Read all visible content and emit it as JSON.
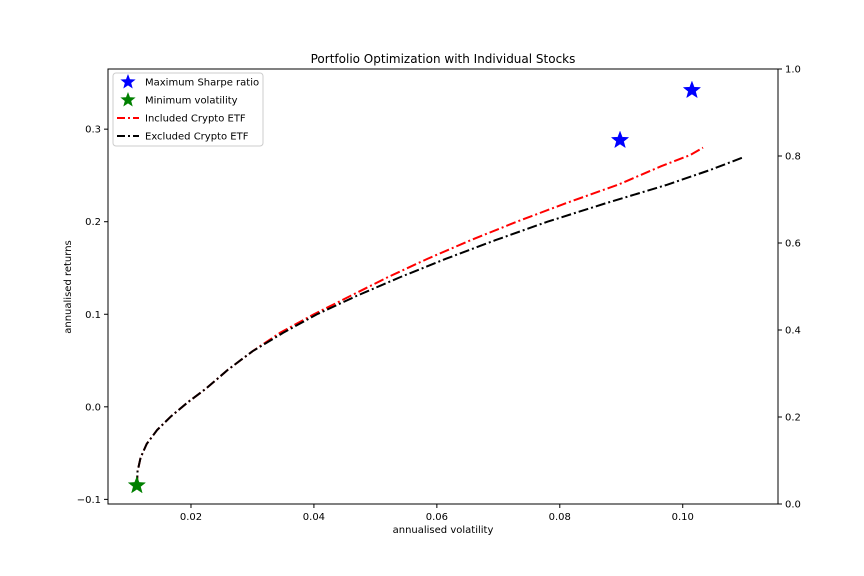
{
  "chart_data": {
    "type": "line",
    "title": "Portfolio Optimization with Individual Stocks",
    "xlabel": "annualised volatility",
    "ylabel": "annualised returns",
    "xlim": [
      0.0065,
      0.1155
    ],
    "ylim": [
      -0.105,
      0.365
    ],
    "y2lim": [
      0.0,
      1.0
    ],
    "xticks": [
      0.02,
      0.04,
      0.06,
      0.08,
      0.1
    ],
    "xtick_labels": [
      "0.02",
      "0.04",
      "0.06",
      "0.08",
      "0.10"
    ],
    "yticks": [
      -0.1,
      0.0,
      0.1,
      0.2,
      0.3
    ],
    "ytick_labels": [
      "−0.1",
      "0.0",
      "0.1",
      "0.2",
      "0.3"
    ],
    "y2ticks": [
      0.0,
      0.2,
      0.4,
      0.6,
      0.8,
      1.0
    ],
    "y2tick_labels": [
      "0.0",
      "0.2",
      "0.4",
      "0.6",
      "0.8",
      "1.0"
    ],
    "grid": false,
    "legend_position": "top-left",
    "legend": [
      {
        "label": "Maximum Sharpe ratio",
        "kind": "star",
        "color": "#0000ff"
      },
      {
        "label": "Minimum volatility",
        "kind": "star",
        "color": "#008000"
      },
      {
        "label": "Included Crypto ETF",
        "kind": "dashdot",
        "color": "#ff0000"
      },
      {
        "label": "Excluded Crypto ETF",
        "kind": "dashdot",
        "color": "#000000"
      }
    ],
    "series": [
      {
        "name": "Included Crypto ETF",
        "color": "#ff0000",
        "style": "dashdot",
        "points": [
          [
            0.0112,
            -0.085
          ],
          [
            0.0113,
            -0.07
          ],
          [
            0.0118,
            -0.055
          ],
          [
            0.0128,
            -0.04
          ],
          [
            0.0145,
            -0.025
          ],
          [
            0.0168,
            -0.01
          ],
          [
            0.0195,
            0.005
          ],
          [
            0.0225,
            0.02
          ],
          [
            0.026,
            0.04
          ],
          [
            0.03,
            0.06
          ],
          [
            0.0345,
            0.08
          ],
          [
            0.04,
            0.1
          ],
          [
            0.046,
            0.12
          ],
          [
            0.052,
            0.14
          ],
          [
            0.0585,
            0.16
          ],
          [
            0.0655,
            0.18
          ],
          [
            0.073,
            0.2
          ],
          [
            0.081,
            0.22
          ],
          [
            0.0895,
            0.24
          ],
          [
            0.0965,
            0.26
          ],
          [
            0.1012,
            0.272
          ],
          [
            0.1033,
            0.28
          ]
        ]
      },
      {
        "name": "Excluded Crypto ETF",
        "color": "#000000",
        "style": "dashdot",
        "points": [
          [
            0.0112,
            -0.085
          ],
          [
            0.0113,
            -0.07
          ],
          [
            0.0118,
            -0.055
          ],
          [
            0.0128,
            -0.04
          ],
          [
            0.0145,
            -0.025
          ],
          [
            0.0168,
            -0.01
          ],
          [
            0.0195,
            0.005
          ],
          [
            0.0225,
            0.02
          ],
          [
            0.026,
            0.04
          ],
          [
            0.03,
            0.06
          ],
          [
            0.035,
            0.08
          ],
          [
            0.0405,
            0.1
          ],
          [
            0.047,
            0.12
          ],
          [
            0.054,
            0.14
          ],
          [
            0.0615,
            0.16
          ],
          [
            0.0695,
            0.18
          ],
          [
            0.078,
            0.2
          ],
          [
            0.0875,
            0.22
          ],
          [
            0.0975,
            0.24
          ],
          [
            0.1045,
            0.256
          ],
          [
            0.11,
            0.27
          ]
        ]
      }
    ],
    "markers": [
      {
        "name": "Maximum Sharpe ratio",
        "color": "#0000ff",
        "x": 0.1015,
        "y": 0.342
      },
      {
        "name": "Maximum Sharpe ratio",
        "color": "#0000ff",
        "x": 0.0898,
        "y": 0.288
      },
      {
        "name": "Minimum volatility",
        "color": "#008000",
        "x": 0.0112,
        "y": -0.085
      }
    ]
  }
}
